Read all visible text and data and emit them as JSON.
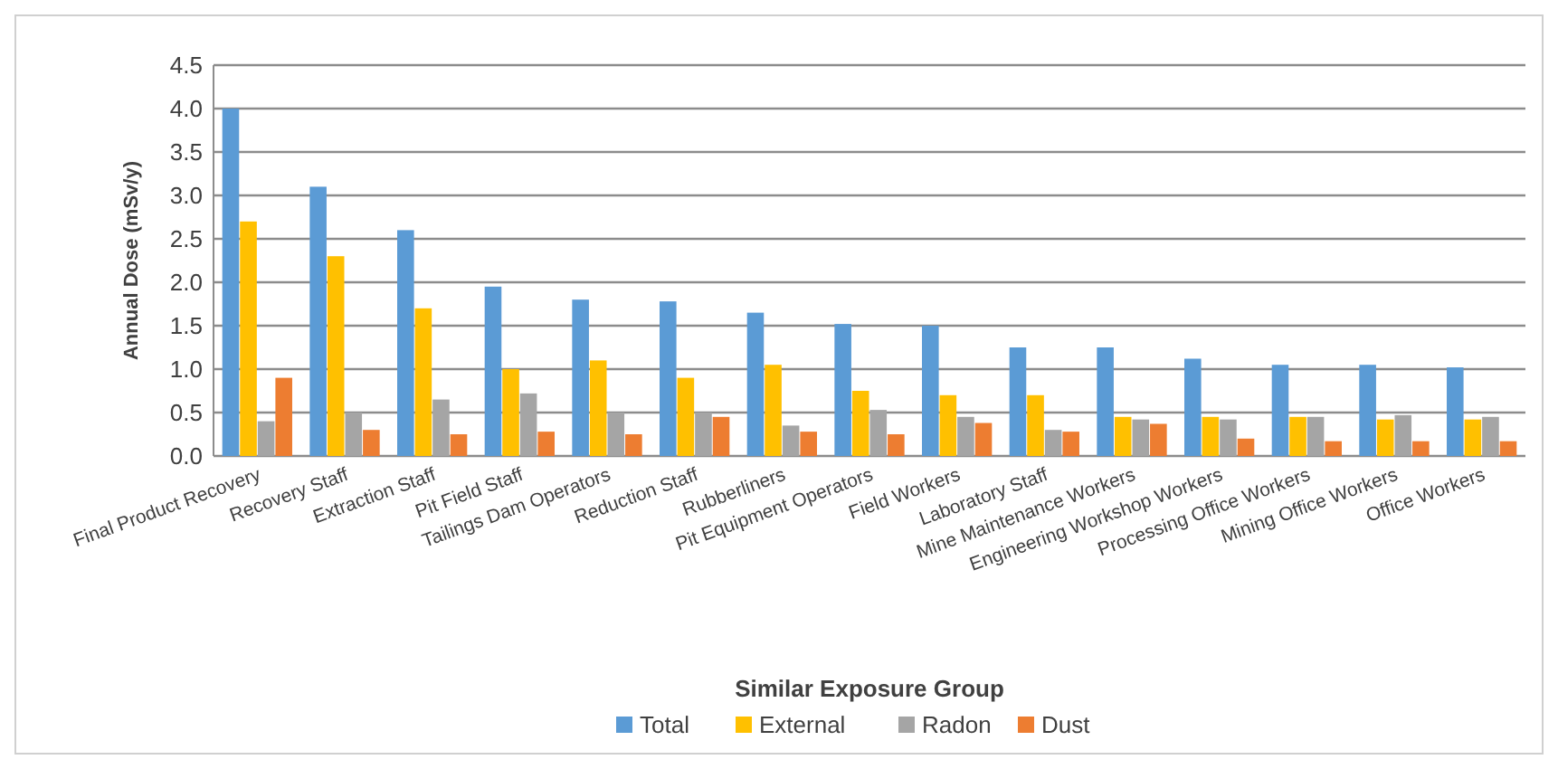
{
  "chart_data": {
    "type": "bar",
    "xlabel": "Similar Exposure Group",
    "ylabel": "Annual Dose (mSv/y)",
    "categories": [
      "Final Product Recovery",
      "Recovery Staff",
      "Extraction Staff",
      "Pit Field Staff",
      "Tailings Dam Operators",
      "Reduction Staff",
      "Rubberliners",
      "Pit Equipment Operators",
      "Field Workers",
      "Laboratory Staff",
      "Mine Maintenance Workers",
      "Engineering Workshop Workers",
      "Processing Office Workers",
      "Mining Office Workers",
      "Office Workers"
    ],
    "series": [
      {
        "name": "Total",
        "color": "#5b9bd5",
        "values": [
          4.0,
          3.1,
          2.6,
          1.95,
          1.8,
          1.78,
          1.65,
          1.52,
          1.5,
          1.25,
          1.25,
          1.12,
          1.05,
          1.05,
          1.02
        ]
      },
      {
        "name": "External",
        "color": "#ffc000",
        "values": [
          2.7,
          2.3,
          1.7,
          1.0,
          1.1,
          0.9,
          1.05,
          0.75,
          0.7,
          0.7,
          0.45,
          0.45,
          0.45,
          0.42,
          0.42
        ]
      },
      {
        "name": "Radon",
        "color": "#a5a5a5",
        "values": [
          0.4,
          0.5,
          0.65,
          0.72,
          0.5,
          0.5,
          0.35,
          0.53,
          0.45,
          0.3,
          0.42,
          0.42,
          0.45,
          0.47,
          0.45
        ]
      },
      {
        "name": "Dust",
        "color": "#ed7d31",
        "values": [
          0.9,
          0.3,
          0.25,
          0.28,
          0.25,
          0.45,
          0.28,
          0.25,
          0.38,
          0.28,
          0.37,
          0.2,
          0.17,
          0.17,
          0.17
        ]
      }
    ],
    "ylim": [
      0,
      4.5
    ],
    "yticks": [
      {
        "value": 0,
        "label": "0.0"
      },
      {
        "value": 0.5,
        "label": "0.5"
      },
      {
        "value": 1,
        "label": "1.0"
      },
      {
        "value": 1.5,
        "label": "1.5"
      },
      {
        "value": 2,
        "label": "2.0"
      },
      {
        "value": 2.5,
        "label": "2.5"
      },
      {
        "value": 3,
        "label": "3.0"
      },
      {
        "value": 3.5,
        "label": "3.5"
      },
      {
        "value": 4,
        "label": "4.0"
      },
      {
        "value": 4.5,
        "label": "4.5"
      }
    ],
    "grid": "y",
    "legend": "bottom"
  }
}
